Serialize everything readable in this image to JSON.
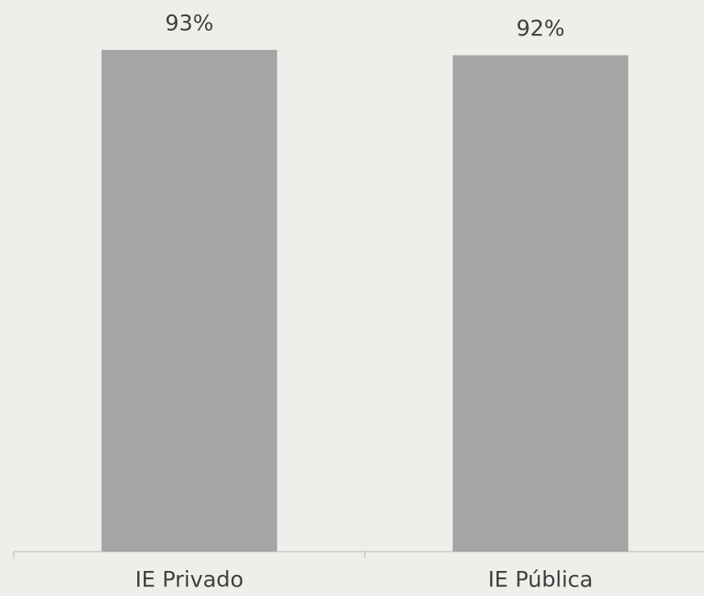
{
  "chart_data": {
    "type": "bar",
    "categories": [
      "IE Privado",
      "IE Pública"
    ],
    "values": [
      93,
      92
    ],
    "value_labels": [
      "93%",
      "92%"
    ],
    "color": "#a5a5a5",
    "ylim": [
      0,
      100
    ]
  }
}
